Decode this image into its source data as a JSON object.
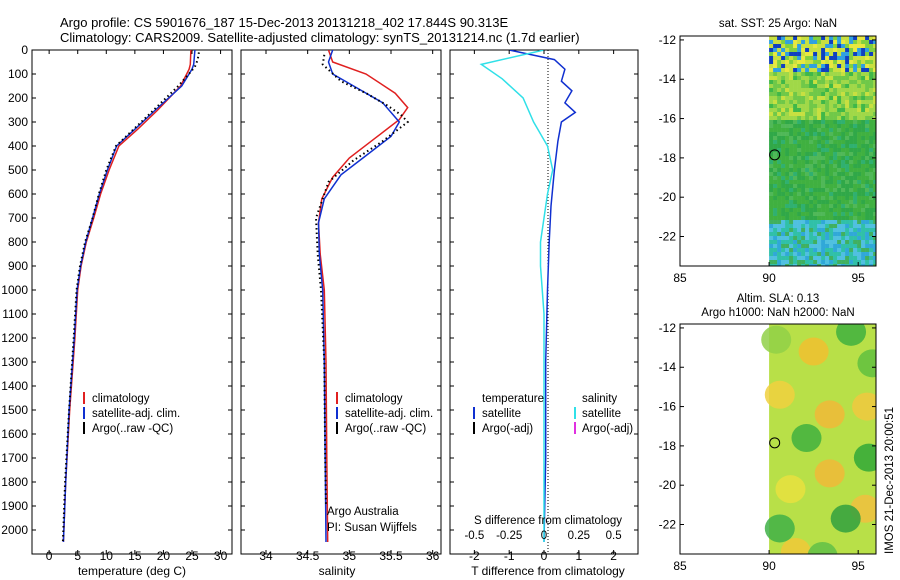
{
  "header": {
    "title_line1": "Argo profile: CS 5901676_187 15-Dec-2013 20131218_402 17.844S 90.313E",
    "title_line2": "Climatology: CARS2009. Satellite-adjusted climatology: synTS_20131214.nc (1.7d earlier)"
  },
  "colors": {
    "climatology": "#e02020",
    "satellite": "#1030d0",
    "argo": "#000000",
    "sal_satellite": "#30e0e8",
    "sal_argo": "#e030e0"
  },
  "chart_data": [
    {
      "type": "line",
      "name": "temperature-profile",
      "xlabel": "temperature (deg C)",
      "ylabel": "",
      "xlim": [
        -3,
        32
      ],
      "ylim": [
        0,
        2100
      ],
      "xticks": [
        "0",
        "5",
        "10",
        "15",
        "20",
        "25",
        "30"
      ],
      "xtick_values": [
        0,
        5,
        10,
        15,
        20,
        25,
        30
      ],
      "yticks": [
        "0",
        "100",
        "200",
        "300",
        "400",
        "500",
        "600",
        "700",
        "800",
        "900",
        "1000",
        "1100",
        "1200",
        "1300",
        "1400",
        "1500",
        "1600",
        "1700",
        "1800",
        "1900",
        "2000"
      ],
      "ytick_values": [
        0,
        100,
        200,
        300,
        400,
        500,
        600,
        700,
        800,
        900,
        1000,
        1100,
        1200,
        1300,
        1400,
        1500,
        1600,
        1700,
        1800,
        1900,
        2000
      ],
      "legend": [
        "climatology",
        "satellite-adj. clim.",
        "Argo(..raw -QC)"
      ],
      "series": [
        {
          "name": "climatology",
          "style": "solid",
          "color": "#e02020",
          "x": [
            24.8,
            24.7,
            24.5,
            23,
            19,
            15.5,
            12.2,
            10.5,
            9,
            7.8,
            6.5,
            5.6,
            5,
            4.5,
            3.6,
            2.9,
            2.5
          ],
          "y": [
            0,
            60,
            80,
            150,
            250,
            330,
            400,
            500,
            600,
            700,
            800,
            900,
            1000,
            1200,
            1500,
            1800,
            2050
          ]
        },
        {
          "name": "satellite-adj. clim.",
          "style": "solid",
          "color": "#1030d0",
          "x": [
            25.5,
            25.3,
            25,
            23.2,
            18.6,
            15,
            11.8,
            10.2,
            8.8,
            7.6,
            6.4,
            5.5,
            4.9,
            4.4,
            3.5,
            2.9,
            2.5
          ],
          "y": [
            0,
            60,
            80,
            150,
            250,
            330,
            400,
            500,
            600,
            700,
            800,
            900,
            1000,
            1200,
            1500,
            1800,
            2050
          ]
        },
        {
          "name": "Argo(..raw -QC)",
          "style": "dotted",
          "color": "#000000",
          "x": [
            26.2,
            26,
            25.5,
            24.8,
            22.6,
            18.3,
            14.8,
            11.7,
            10,
            8.7,
            7.6,
            6.3,
            5.4,
            4.8,
            4.3,
            3.5,
            2.8,
            2.4
          ],
          "y": [
            10,
            40,
            70,
            90,
            150,
            250,
            330,
            400,
            500,
            600,
            700,
            800,
            900,
            1000,
            1200,
            1500,
            1800,
            2050
          ]
        }
      ]
    },
    {
      "type": "line",
      "name": "salinity-profile",
      "xlabel": "salinity",
      "xlim": [
        33.7,
        36.1
      ],
      "ylim": [
        0,
        2100
      ],
      "xticks": [
        "34",
        "34.5",
        "35",
        "35.5",
        "36"
      ],
      "xtick_values": [
        34,
        34.5,
        35,
        35.5,
        36
      ],
      "legend": [
        "climatology",
        "satellite-adj. clim.",
        "Argo(..raw -QC)"
      ],
      "annotation": [
        "Argo Australia",
        "PI: Susan Wijffels"
      ],
      "series": [
        {
          "name": "climatology",
          "style": "solid",
          "color": "#e02020",
          "x": [
            34.75,
            34.8,
            35.2,
            35.55,
            35.7,
            35.6,
            35.3,
            35,
            34.8,
            34.67,
            34.63,
            34.65,
            34.7,
            34.72,
            34.73,
            34.74
          ],
          "y": [
            0,
            50,
            100,
            180,
            240,
            290,
            370,
            450,
            530,
            620,
            720,
            850,
            1000,
            1300,
            1700,
            2050
          ]
        },
        {
          "name": "satellite-adj. clim.",
          "style": "solid",
          "color": "#1030d0",
          "x": [
            34.8,
            34.75,
            34.8,
            35.1,
            35.4,
            35.6,
            35.5,
            35.2,
            34.9,
            34.7,
            34.63,
            34.64,
            34.68,
            34.7,
            34.71,
            34.72
          ],
          "y": [
            0,
            50,
            100,
            160,
            220,
            300,
            360,
            440,
            520,
            620,
            720,
            850,
            1000,
            1300,
            1700,
            2050
          ]
        },
        {
          "name": "Argo(..raw -QC)",
          "style": "dotted",
          "color": "#000000",
          "x": [
            34.7,
            34.68,
            34.9,
            35.2,
            35.45,
            35.62,
            35.7,
            35.4,
            35.05,
            34.75,
            34.6,
            34.62,
            34.66,
            34.7,
            34.71,
            34.72
          ],
          "y": [
            20,
            60,
            130,
            180,
            230,
            270,
            300,
            380,
            460,
            550,
            700,
            850,
            1000,
            1300,
            1700,
            1900
          ]
        }
      ]
    },
    {
      "type": "line",
      "name": "difference-profile",
      "xlabel": "T difference from climatology",
      "xlabel_top": "S difference from climatology",
      "xlim": [
        -2.7,
        2.7
      ],
      "ylim": [
        0,
        2100
      ],
      "xticks": [
        "-2",
        "-1",
        "0",
        "1",
        "2"
      ],
      "xtick_values": [
        -2,
        -1,
        0,
        1,
        2
      ],
      "sticks": [
        "-0.5",
        "-0.25",
        "0",
        "0.25",
        "0.5"
      ],
      "stick_values_in_T_units": [
        -2,
        -1,
        0,
        1,
        2
      ],
      "legend_temperature_title": "temperature",
      "legend_salinity_title": "salinity",
      "legend": [
        "satellite",
        "Argo(-adj)",
        "satellite",
        "Argo(-adj)"
      ],
      "series": [
        {
          "name": "temperature satellite",
          "style": "solid",
          "color": "#1030d0",
          "x": [
            -1.0,
            0.3,
            0.6,
            0.5,
            0.8,
            0.6,
            0.9,
            0.5,
            0.4,
            0.3,
            0.2,
            0.15,
            0.1,
            0.05,
            0.05,
            0.0
          ],
          "y": [
            0,
            40,
            80,
            130,
            170,
            220,
            260,
            300,
            380,
            500,
            650,
            800,
            1000,
            1300,
            1700,
            2050
          ]
        },
        {
          "name": "salinity satellite",
          "style": "solid",
          "color": "#30e0e8",
          "x": [
            0,
            -1.8,
            -1.2,
            -0.6,
            -0.3,
            0.1,
            0.25,
            0.1,
            0.0,
            -0.1,
            -0.1,
            0.0,
            0.0,
            0.0
          ],
          "y": [
            0,
            60,
            120,
            200,
            300,
            400,
            500,
            600,
            700,
            800,
            900,
            1100,
            1500,
            2050
          ]
        }
      ]
    },
    {
      "type": "heatmap",
      "name": "sst-map",
      "title": "sat. SST: 25 Argo: NaN",
      "xlim": [
        85,
        96
      ],
      "ylim": [
        -23.5,
        -11.8
      ],
      "xticks": [
        "85",
        "90",
        "95"
      ],
      "xtick_values": [
        85,
        90,
        95
      ],
      "yticks": [
        "-12",
        "-14",
        "-16",
        "-18",
        "-20",
        "-22"
      ],
      "ytick_values": [
        -12,
        -14,
        -16,
        -18,
        -20,
        -22
      ],
      "data_lon_range": [
        90,
        96
      ],
      "marker": {
        "lon": 90.313,
        "lat": -17.844
      }
    },
    {
      "type": "heatmap",
      "name": "sla-map",
      "title_line1": "Altim. SLA: 0.13",
      "title_line2": "Argo h1000: NaN h2000: NaN",
      "xlim": [
        85,
        96
      ],
      "ylim": [
        -23.5,
        -11.8
      ],
      "xticks": [
        "85",
        "90",
        "95"
      ],
      "xtick_values": [
        85,
        90,
        95
      ],
      "yticks": [
        "-12",
        "-14",
        "-16",
        "-18",
        "-20",
        "-22"
      ],
      "ytick_values": [
        -12,
        -14,
        -16,
        -18,
        -20,
        -22
      ],
      "data_lon_range": [
        90,
        96
      ],
      "marker": {
        "lon": 90.313,
        "lat": -17.844
      }
    }
  ],
  "watermark": "IMOS 21-Dec-2013 20:00:51"
}
